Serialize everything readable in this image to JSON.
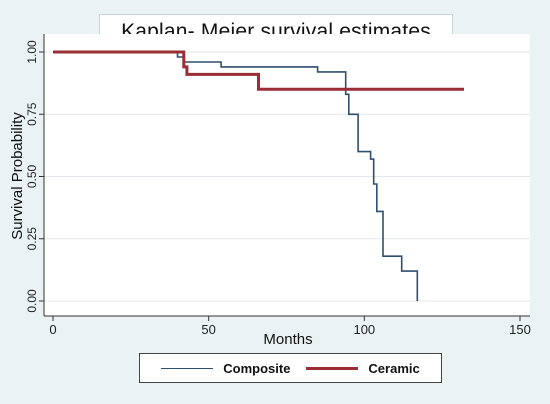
{
  "chart_data": {
    "type": "line",
    "subtype": "step",
    "title": "Kaplan- Meier survival estimates",
    "xlabel": "Months",
    "ylabel": "Survival Probability",
    "xlim": [
      0,
      150
    ],
    "ylim": [
      0,
      1
    ],
    "xticks": [
      0,
      50,
      100,
      150
    ],
    "yticks": [
      0,
      0.25,
      0.5,
      0.75,
      1
    ],
    "xtick_labels": [
      "0",
      "50",
      "100",
      "150"
    ],
    "ytick_labels": [
      "0.00",
      "0.25",
      "0.50",
      "0.75",
      "1.00"
    ],
    "grid": "horizontal",
    "legend_position": "bottom",
    "series": [
      {
        "name": "Composite",
        "color": "#2f4f6f",
        "x": [
          0,
          40,
          40,
          42,
          42,
          54,
          54,
          85,
          85,
          94,
          94,
          95,
          95,
          98,
          98,
          102,
          102,
          103,
          103,
          104,
          104,
          106,
          106,
          112,
          112,
          117,
          117
        ],
        "y": [
          1,
          1,
          0.98,
          0.98,
          0.96,
          0.96,
          0.94,
          0.94,
          0.92,
          0.92,
          0.83,
          0.83,
          0.75,
          0.75,
          0.6,
          0.6,
          0.57,
          0.57,
          0.47,
          0.47,
          0.36,
          0.36,
          0.18,
          0.18,
          0.12,
          0.12,
          0
        ]
      },
      {
        "name": "Ceramic",
        "color": "#9b2d35",
        "x": [
          0,
          42,
          42,
          43,
          43,
          66,
          66,
          132
        ],
        "y": [
          1,
          1,
          0.94,
          0.94,
          0.91,
          0.91,
          0.85,
          0.85
        ]
      }
    ]
  }
}
